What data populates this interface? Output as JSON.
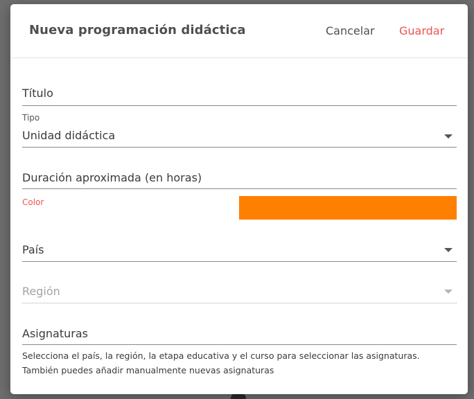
{
  "dialog": {
    "title": "Nueva programación didáctica",
    "cancel_label": "Cancelar",
    "save_label": "Guardar"
  },
  "fields": {
    "titulo": {
      "label": "Título"
    },
    "tipo": {
      "label": "Tipo",
      "value": "Unidad didáctica"
    },
    "duracion": {
      "label": "Duración aproximada (en horas)"
    },
    "color": {
      "label": "Color",
      "value": "#ff8000"
    },
    "pais": {
      "label": "País"
    },
    "region": {
      "label": "Región"
    },
    "asignaturas": {
      "label": "Asignaturas",
      "helper": "Selecciona el país, la región, la etapa educativa y el curso para seleccionar las asignaturas. También puedes añadir manualmente nuevas asignaturas"
    }
  },
  "colors": {
    "accent": "#ef5350",
    "swatch": "#ff8000"
  },
  "icons": {
    "dropdown": "chevron-down-icon"
  }
}
